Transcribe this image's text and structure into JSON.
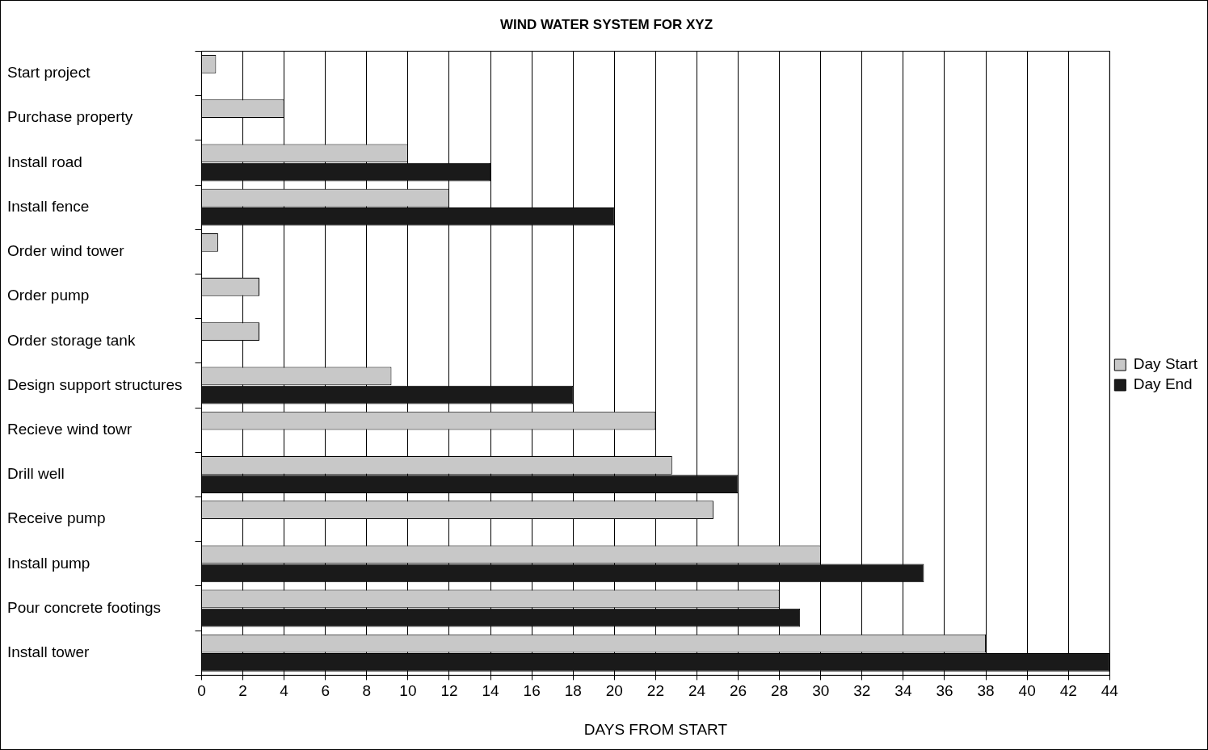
{
  "chart_data": {
    "type": "bar",
    "orientation": "horizontal",
    "title": "WIND WATER SYSTEM FOR XYZ",
    "xlabel": "DAYS FROM START",
    "categories": [
      "Start project",
      "Purchase property",
      "Install road",
      "Install fence",
      "Order wind tower",
      "Order pump",
      "Order storage tank",
      "Design support structures",
      "Recieve wind towr",
      "Drill well",
      "Receive pump",
      "Install pump",
      "Pour concrete footings",
      "Install tower"
    ],
    "series": [
      {
        "name": "Day Start",
        "color": "#c8c8c8",
        "values": [
          0.7,
          4,
          10,
          12,
          0.8,
          2.8,
          2.8,
          9.2,
          22,
          22.8,
          24.8,
          30,
          28,
          38
        ]
      },
      {
        "name": "Day End",
        "color": "#1a1a1a",
        "values": [
          null,
          null,
          14,
          20,
          null,
          null,
          null,
          18,
          null,
          26,
          null,
          35,
          29,
          44
        ]
      }
    ],
    "xlim": [
      0,
      44
    ],
    "xticks": [
      0,
      2,
      4,
      6,
      8,
      10,
      12,
      14,
      16,
      18,
      20,
      22,
      24,
      26,
      28,
      30,
      32,
      34,
      36,
      38,
      40,
      42,
      44
    ],
    "grid": "x",
    "legend": "right"
  }
}
